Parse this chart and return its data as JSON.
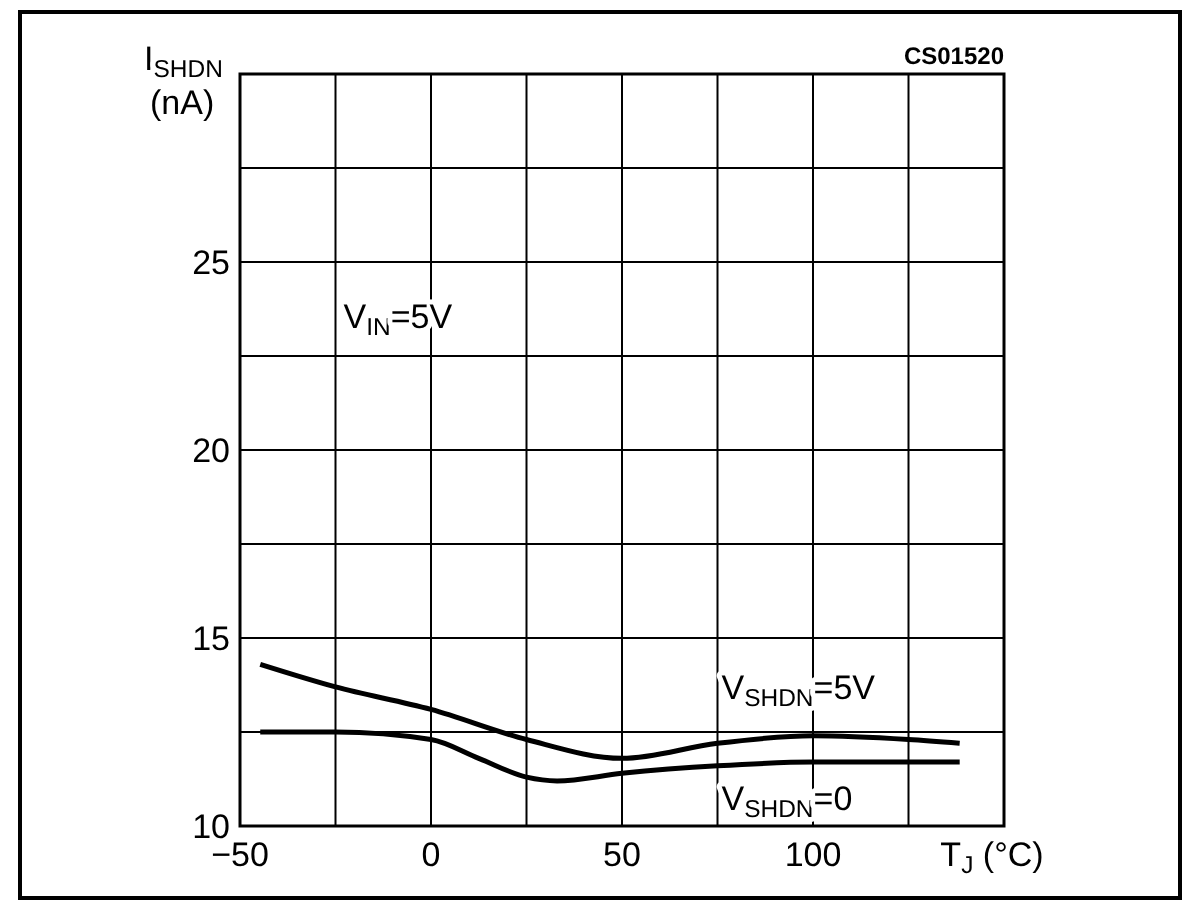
{
  "chart_data": {
    "type": "line",
    "xlabel": "T$_{J}$ (°C)",
    "ylabel": "I$_{SHDN}$ (nA)",
    "annotations": [
      "V$_{IN}$=5V",
      "CS01520"
    ],
    "xlim": [
      -50,
      150
    ],
    "ylim": [
      10,
      30
    ],
    "xticks": [
      -50,
      {
        "value": -25,
        "label": null
      },
      0,
      {
        "value": 25,
        "label": null
      },
      50,
      {
        "value": 75,
        "label": null
      },
      100,
      {
        "value": 125,
        "label": null
      },
      {
        "value": 150,
        "label": null
      }
    ],
    "yticks": [
      10,
      {
        "value": 12.5,
        "label": null
      },
      15,
      {
        "value": 17.5,
        "label": null
      },
      20,
      {
        "value": 22.5,
        "label": null
      },
      25,
      {
        "value": 27.5,
        "label": null
      },
      {
        "value": 30,
        "label": null
      }
    ],
    "grid": true,
    "legend": false,
    "marker": "none",
    "line_style": "solid",
    "series": [
      {
        "name": "V$_{SHDN}$=5V",
        "color": "#000000",
        "x": [
          -44.7,
          -25,
          0,
          25,
          50,
          75,
          100,
          125,
          138.4
        ],
        "values": [
          14.3,
          13.7,
          13.1,
          12.3,
          11.8,
          12.2,
          12.4,
          12.3,
          12.2
        ]
      },
      {
        "name": "V$_{SHDN}$=0",
        "color": "#000000",
        "x": [
          -44.7,
          -25,
          0,
          12.5,
          25,
          33,
          50,
          75,
          100,
          125,
          138.4
        ],
        "values": [
          12.5,
          12.5,
          12.3,
          11.8,
          11.3,
          11.2,
          11.4,
          11.6,
          11.7,
          11.7,
          11.7
        ]
      }
    ]
  }
}
